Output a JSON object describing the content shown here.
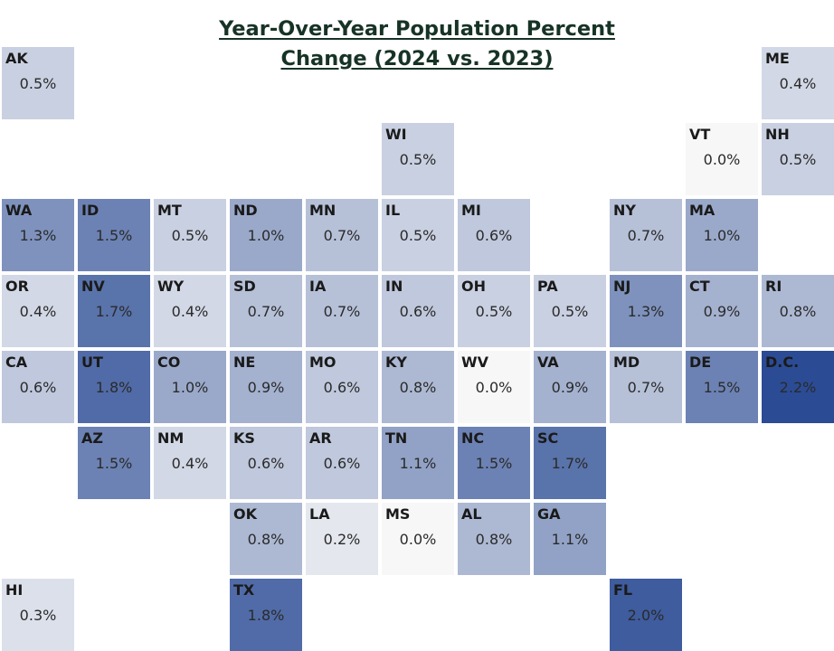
{
  "title": {
    "line1": "Year-Over-Year Population Percent",
    "line2": "Change (2024 vs. 2023)"
  },
  "color_scale": {
    "min_value": 0.0,
    "max_value": 2.2,
    "min_color": "#f7f7f7",
    "max_color": "#2b4c95"
  },
  "tiles": [
    {
      "abbr": "AK",
      "value": 0.5,
      "label": "0.5%",
      "row": 0,
      "col": 0
    },
    {
      "abbr": "ME",
      "value": 0.4,
      "label": "0.4%",
      "row": 0,
      "col": 10
    },
    {
      "abbr": "WI",
      "value": 0.5,
      "label": "0.5%",
      "row": 1,
      "col": 5
    },
    {
      "abbr": "VT",
      "value": 0.0,
      "label": "0.0%",
      "row": 1,
      "col": 9
    },
    {
      "abbr": "NH",
      "value": 0.5,
      "label": "0.5%",
      "row": 1,
      "col": 10
    },
    {
      "abbr": "WA",
      "value": 1.3,
      "label": "1.3%",
      "row": 2,
      "col": 0
    },
    {
      "abbr": "ID",
      "value": 1.5,
      "label": "1.5%",
      "row": 2,
      "col": 1
    },
    {
      "abbr": "MT",
      "value": 0.5,
      "label": "0.5%",
      "row": 2,
      "col": 2
    },
    {
      "abbr": "ND",
      "value": 1.0,
      "label": "1.0%",
      "row": 2,
      "col": 3
    },
    {
      "abbr": "MN",
      "value": 0.7,
      "label": "0.7%",
      "row": 2,
      "col": 4
    },
    {
      "abbr": "IL",
      "value": 0.5,
      "label": "0.5%",
      "row": 2,
      "col": 5
    },
    {
      "abbr": "MI",
      "value": 0.6,
      "label": "0.6%",
      "row": 2,
      "col": 6
    },
    {
      "abbr": "NY",
      "value": 0.7,
      "label": "0.7%",
      "row": 2,
      "col": 8
    },
    {
      "abbr": "MA",
      "value": 1.0,
      "label": "1.0%",
      "row": 2,
      "col": 9
    },
    {
      "abbr": "OR",
      "value": 0.4,
      "label": "0.4%",
      "row": 3,
      "col": 0
    },
    {
      "abbr": "NV",
      "value": 1.7,
      "label": "1.7%",
      "row": 3,
      "col": 1
    },
    {
      "abbr": "WY",
      "value": 0.4,
      "label": "0.4%",
      "row": 3,
      "col": 2
    },
    {
      "abbr": "SD",
      "value": 0.7,
      "label": "0.7%",
      "row": 3,
      "col": 3
    },
    {
      "abbr": "IA",
      "value": 0.7,
      "label": "0.7%",
      "row": 3,
      "col": 4
    },
    {
      "abbr": "IN",
      "value": 0.6,
      "label": "0.6%",
      "row": 3,
      "col": 5
    },
    {
      "abbr": "OH",
      "value": 0.5,
      "label": "0.5%",
      "row": 3,
      "col": 6
    },
    {
      "abbr": "PA",
      "value": 0.5,
      "label": "0.5%",
      "row": 3,
      "col": 7
    },
    {
      "abbr": "NJ",
      "value": 1.3,
      "label": "1.3%",
      "row": 3,
      "col": 8
    },
    {
      "abbr": "CT",
      "value": 0.9,
      "label": "0.9%",
      "row": 3,
      "col": 9
    },
    {
      "abbr": "RI",
      "value": 0.8,
      "label": "0.8%",
      "row": 3,
      "col": 10
    },
    {
      "abbr": "CA",
      "value": 0.6,
      "label": "0.6%",
      "row": 4,
      "col": 0
    },
    {
      "abbr": "UT",
      "value": 1.8,
      "label": "1.8%",
      "row": 4,
      "col": 1
    },
    {
      "abbr": "CO",
      "value": 1.0,
      "label": "1.0%",
      "row": 4,
      "col": 2
    },
    {
      "abbr": "NE",
      "value": 0.9,
      "label": "0.9%",
      "row": 4,
      "col": 3
    },
    {
      "abbr": "MO",
      "value": 0.6,
      "label": "0.6%",
      "row": 4,
      "col": 4
    },
    {
      "abbr": "KY",
      "value": 0.8,
      "label": "0.8%",
      "row": 4,
      "col": 5
    },
    {
      "abbr": "WV",
      "value": 0.0,
      "label": "0.0%",
      "row": 4,
      "col": 6
    },
    {
      "abbr": "VA",
      "value": 0.9,
      "label": "0.9%",
      "row": 4,
      "col": 7
    },
    {
      "abbr": "MD",
      "value": 0.7,
      "label": "0.7%",
      "row": 4,
      "col": 8
    },
    {
      "abbr": "DE",
      "value": 1.5,
      "label": "1.5%",
      "row": 4,
      "col": 9
    },
    {
      "abbr": "D.C.",
      "value": 2.2,
      "label": "2.2%",
      "row": 4,
      "col": 10
    },
    {
      "abbr": "AZ",
      "value": 1.5,
      "label": "1.5%",
      "row": 5,
      "col": 1
    },
    {
      "abbr": "NM",
      "value": 0.4,
      "label": "0.4%",
      "row": 5,
      "col": 2
    },
    {
      "abbr": "KS",
      "value": 0.6,
      "label": "0.6%",
      "row": 5,
      "col": 3
    },
    {
      "abbr": "AR",
      "value": 0.6,
      "label": "0.6%",
      "row": 5,
      "col": 4
    },
    {
      "abbr": "TN",
      "value": 1.1,
      "label": "1.1%",
      "row": 5,
      "col": 5
    },
    {
      "abbr": "NC",
      "value": 1.5,
      "label": "1.5%",
      "row": 5,
      "col": 6
    },
    {
      "abbr": "SC",
      "value": 1.7,
      "label": "1.7%",
      "row": 5,
      "col": 7
    },
    {
      "abbr": "OK",
      "value": 0.8,
      "label": "0.8%",
      "row": 6,
      "col": 3
    },
    {
      "abbr": "LA",
      "value": 0.2,
      "label": "0.2%",
      "row": 6,
      "col": 4
    },
    {
      "abbr": "MS",
      "value": 0.0,
      "label": "0.0%",
      "row": 6,
      "col": 5
    },
    {
      "abbr": "AL",
      "value": 0.8,
      "label": "0.8%",
      "row": 6,
      "col": 6
    },
    {
      "abbr": "GA",
      "value": 1.1,
      "label": "1.1%",
      "row": 6,
      "col": 7
    },
    {
      "abbr": "HI",
      "value": 0.3,
      "label": "0.3%",
      "row": 7,
      "col": 0
    },
    {
      "abbr": "TX",
      "value": 1.8,
      "label": "1.8%",
      "row": 7,
      "col": 3
    },
    {
      "abbr": "FL",
      "value": 2.0,
      "label": "2.0%",
      "row": 7,
      "col": 8
    }
  ]
}
